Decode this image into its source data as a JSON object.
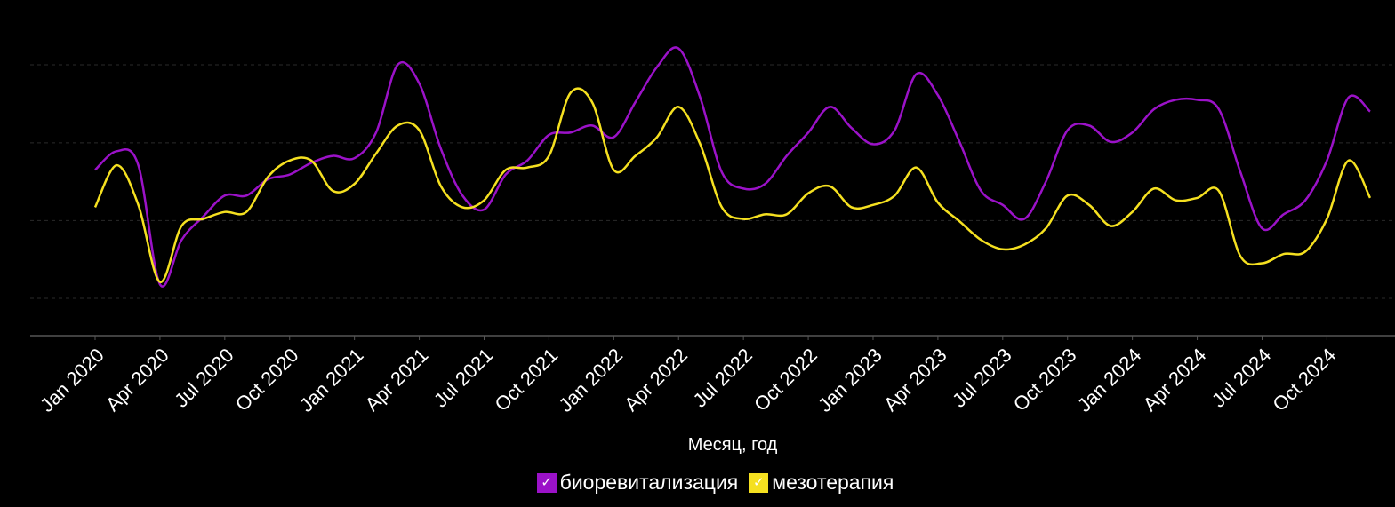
{
  "chart_data": {
    "type": "line",
    "xlabel": "Месяц, год",
    "ylabel": "",
    "ylim": [
      0,
      100
    ],
    "grid": true,
    "legend_placement": "bottom-center",
    "x_tick_labels": [
      "Jan 2020",
      "Apr 2020",
      "Jul 2020",
      "Oct 2020",
      "Jan 2021",
      "Apr 2021",
      "Jul 2021",
      "Oct 2021",
      "Jan 2022",
      "Apr 2022",
      "Jul 2022",
      "Oct 2022",
      "Jan 2023",
      "Apr 2023",
      "Jul 2023",
      "Oct 2023",
      "Jan 2024",
      "Apr 2024",
      "Jul 2024",
      "Oct 2024"
    ],
    "x": [
      "2020-01",
      "2020-02",
      "2020-03",
      "2020-04",
      "2020-05",
      "2020-06",
      "2020-07",
      "2020-08",
      "2020-09",
      "2020-10",
      "2020-11",
      "2020-12",
      "2021-01",
      "2021-02",
      "2021-03",
      "2021-04",
      "2021-05",
      "2021-06",
      "2021-07",
      "2021-08",
      "2021-09",
      "2021-10",
      "2021-11",
      "2021-12",
      "2022-01",
      "2022-02",
      "2022-03",
      "2022-04",
      "2022-05",
      "2022-06",
      "2022-07",
      "2022-08",
      "2022-09",
      "2022-10",
      "2022-11",
      "2022-12",
      "2023-01",
      "2023-02",
      "2023-03",
      "2023-04",
      "2023-05",
      "2023-06",
      "2023-07",
      "2023-08",
      "2023-09",
      "2023-10",
      "2023-11",
      "2023-12",
      "2024-01",
      "2024-02",
      "2024-03",
      "2024-04",
      "2024-05",
      "2024-06",
      "2024-07",
      "2024-08",
      "2024-09",
      "2024-10",
      "2024-11",
      "2024-12"
    ],
    "series": [
      {
        "name": "биоревитализация",
        "color": "#9b12c8",
        "values": [
          55,
          63,
          57,
          6,
          25,
          35,
          44,
          44,
          51,
          53,
          58,
          61,
          60,
          71,
          100,
          92,
          64,
          44,
          38,
          53,
          59,
          70,
          71,
          74,
          69,
          84,
          99,
          107,
          86,
          54,
          47,
          49,
          61,
          71,
          82,
          73,
          66,
          72,
          96,
          87,
          67,
          46,
          40,
          34,
          50,
          72,
          74,
          67,
          71,
          81,
          85,
          85,
          81,
          54,
          30,
          36,
          42,
          59,
          86,
          80
        ]
      },
      {
        "name": "мезотерапия",
        "color": "#f5e020",
        "values": [
          39,
          57,
          40,
          7,
          31,
          34,
          37,
          37,
          52,
          59,
          59,
          46,
          49,
          62,
          74,
          72,
          48,
          39,
          42,
          55,
          56,
          61,
          88,
          84,
          55,
          61,
          69,
          82,
          66,
          39,
          34,
          36,
          36,
          45,
          48,
          39,
          40,
          44,
          56,
          41,
          33,
          25,
          21,
          23,
          30,
          44,
          40,
          31,
          37,
          47,
          42,
          43,
          46,
          18,
          15,
          19,
          20,
          34,
          59,
          43
        ]
      }
    ]
  },
  "legend": {
    "items": [
      {
        "label": "биоревитализация",
        "color": "#9b12c8",
        "check": "✓"
      },
      {
        "label": "мезотерапия",
        "color": "#f5e020",
        "check": "✓"
      }
    ]
  },
  "colors": {
    "background": "#000000",
    "axis": "#555555",
    "grid": "#2a2a2a",
    "text": "#ffffff"
  }
}
